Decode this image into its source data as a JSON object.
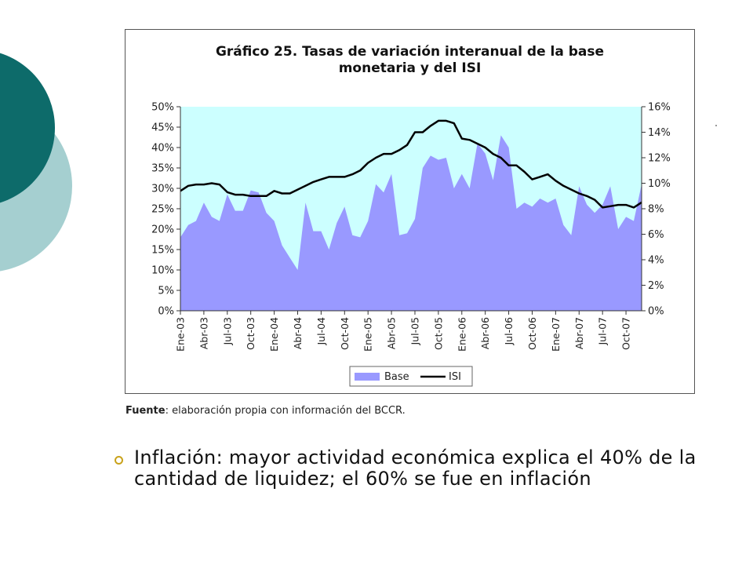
{
  "slide": {
    "source_label": "Fuente",
    "source_text": ": elaboración propia con información del BCCR.",
    "bullet_text": "Inflación: mayor actividad económica explica el 40% de la cantidad de liquidez; el 60% se fue en inflación",
    "bullet_icon": "circle-bullet-icon",
    "colors": {
      "teal_dark": "#0d6b6a",
      "teal_light": "#a5cfd0",
      "bullet": "#c9a21b"
    }
  },
  "chart_data": {
    "type": "area",
    "title_line1": "Gráfico 25. Tasas de variación interanual de la base",
    "title_line2": "monetaria y del ISI",
    "x_tick_labels": [
      "Ene-03",
      "Abr-03",
      "Jul-03",
      "Oct-03",
      "Ene-04",
      "Abr-04",
      "Jul-04",
      "Oct-04",
      "Ene-05",
      "Abr-05",
      "Jul-05",
      "Oct-05",
      "Ene-06",
      "Abr-06",
      "Jul-06",
      "Oct-06",
      "Ene-07",
      "Abr-07",
      "Jul-07",
      "Oct-07"
    ],
    "y_left_ticks": [
      "0%",
      "5%",
      "10%",
      "15%",
      "20%",
      "25%",
      "30%",
      "35%",
      "40%",
      "45%",
      "50%"
    ],
    "y_left_lim": [
      0,
      50
    ],
    "y_right_ticks": [
      "0%",
      "2%",
      "4%",
      "6%",
      "8%",
      "10%",
      "12%",
      "14%",
      "16%"
    ],
    "y_right_lim": [
      0,
      16
    ],
    "legend": {
      "position": "bottom",
      "base_label": "Base",
      "isi_label": "ISI"
    },
    "colors": {
      "base_fill": "#9999ff",
      "plot_bg": "#ccffff",
      "isi_line": "#000000"
    },
    "series": [
      {
        "name": "Base",
        "axis": "left",
        "values": [
          18,
          21,
          22,
          26.5,
          23,
          22,
          28.5,
          24.5,
          24.5,
          29.5,
          29,
          24,
          22,
          16,
          13,
          10,
          26.5,
          19.5,
          19.5,
          15,
          21.5,
          25.5,
          18.5,
          18,
          22,
          31,
          29,
          33.5,
          18.5,
          19,
          22.5,
          35,
          38,
          37,
          37.5,
          30,
          33.5,
          30,
          41,
          38.5,
          32,
          43,
          40,
          25,
          26.5,
          25.5,
          27.5,
          26.5,
          27.5,
          21,
          18.5,
          30.5,
          26,
          24,
          26,
          30.5,
          20,
          23,
          22,
          31
        ]
      },
      {
        "name": "ISI",
        "axis": "right",
        "values": [
          9.4,
          9.8,
          9.9,
          9.9,
          10,
          9.9,
          9.3,
          9.1,
          9.1,
          9.0,
          9.0,
          9.0,
          9.4,
          9.2,
          9.2,
          9.5,
          9.8,
          10.1,
          10.3,
          10.5,
          10.5,
          10.5,
          10.7,
          11,
          11.6,
          12,
          12.3,
          12.3,
          12.6,
          13,
          14,
          14,
          14.5,
          14.9,
          14.9,
          14.7,
          13.5,
          13.4,
          13.1,
          12.8,
          12.3,
          12,
          11.4,
          11.4,
          10.9,
          10.3,
          10.5,
          10.7,
          10.2,
          9.8,
          9.5,
          9.2,
          9,
          8.7,
          8.1,
          8.2,
          8.3,
          8.3,
          8.1,
          8.5
        ]
      }
    ]
  }
}
